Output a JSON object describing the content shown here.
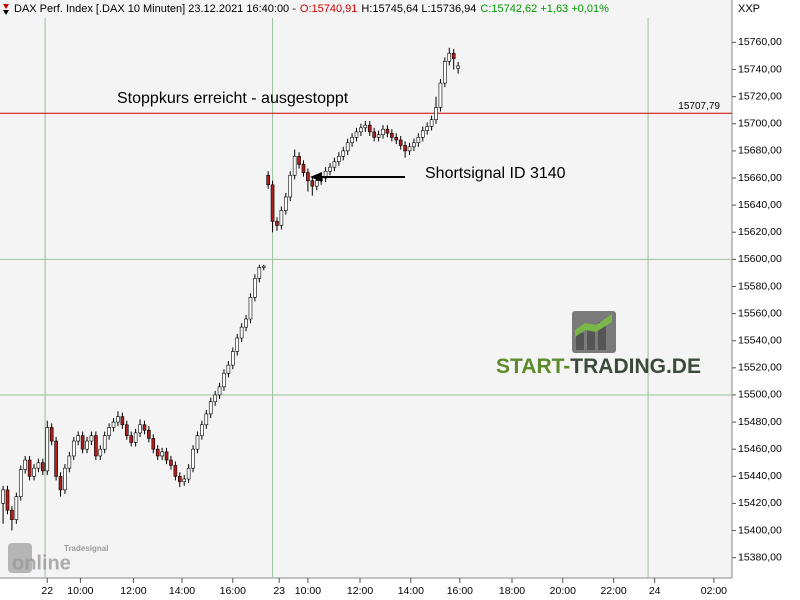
{
  "chart_data": {
    "type": "candlestick",
    "header": [
      "DAX Perf. Index [.DAX  10 Minuten] 23.12.2021 16:40:00 -",
      "O:15740,91",
      "H:15745,64 L:15736,94",
      "C:15742,62 +1,63 +0,01%"
    ],
    "header_colors": [
      "#000000",
      "#cc0000",
      "#000000",
      "#009900"
    ],
    "axis_title": "XXP",
    "annotations": [
      {
        "text": "Stoppkurs erreicht - ausgestoppt",
        "color": "#1a1adb"
      },
      {
        "text": "Shortsignal ID 3140",
        "color": "#1a1adb"
      }
    ],
    "logo": [
      "START-",
      "TRADING.DE"
    ],
    "watermark": [
      "Tradesignal",
      "online"
    ],
    "stop_line": {
      "value": 15707.79,
      "label": "15707,79",
      "color": "#cc0000"
    },
    "up_color": "#ffffff",
    "down_color": "#b01e1e",
    "wick_color": "#000000",
    "grid": true,
    "hgrid": [
      15500,
      15600
    ],
    "day_lines": [
      9.5,
      61,
      146
    ],
    "xlim": [
      -0.7,
      165
    ],
    "ylim": [
      15365,
      15778
    ],
    "xticks": [
      {
        "value": 10,
        "label": "22"
      },
      {
        "value": 17.5,
        "label": "10:00"
      },
      {
        "value": 29.5,
        "label": "12:00"
      },
      {
        "value": 40.5,
        "label": "14:00"
      },
      {
        "value": 52,
        "label": "16:00"
      },
      {
        "value": 62.5,
        "label": "23"
      },
      {
        "value": 69,
        "label": "10:00"
      },
      {
        "value": 80.8,
        "label": "12:00"
      },
      {
        "value": 92.3,
        "label": "14:00"
      },
      {
        "value": 103.4,
        "label": "16:00"
      },
      {
        "value": 115.2,
        "label": "18:00"
      },
      {
        "value": 126.7,
        "label": "20:00"
      },
      {
        "value": 138.2,
        "label": "22:00"
      },
      {
        "value": 147.5,
        "label": "24"
      },
      {
        "value": 160.9,
        "label": "02:00"
      }
    ],
    "yticks": [
      {
        "value": 15380,
        "label": "15380,00"
      },
      {
        "value": 15400,
        "label": "15400,00"
      },
      {
        "value": 15420,
        "label": "15420,00"
      },
      {
        "value": 15440,
        "label": "15440,00"
      },
      {
        "value": 15460,
        "label": "15460,00"
      },
      {
        "value": 15480,
        "label": "15480,00"
      },
      {
        "value": 15500,
        "label": "15500,00"
      },
      {
        "value": 15520,
        "label": "15520,00"
      },
      {
        "value": 15540,
        "label": "15540,00"
      },
      {
        "value": 15560,
        "label": "15560,00"
      },
      {
        "value": 15580,
        "label": "15580,00"
      },
      {
        "value": 15600,
        "label": "15600,00"
      },
      {
        "value": 15620,
        "label": "15620,00"
      },
      {
        "value": 15640,
        "label": "15640,00"
      },
      {
        "value": 15660,
        "label": "15660,00"
      },
      {
        "value": 15680,
        "label": "15680,00"
      },
      {
        "value": 15700,
        "label": "15700,00"
      },
      {
        "value": 15720,
        "label": "15720,00"
      },
      {
        "value": 15740,
        "label": "15740,00"
      },
      {
        "value": 15760,
        "label": "15760,00"
      }
    ],
    "candles": [
      [
        15420,
        15433,
        15405,
        15430
      ],
      [
        15430,
        15433,
        15412,
        15415
      ],
      [
        15415,
        15418,
        15400,
        15408
      ],
      [
        15408,
        15428,
        15405,
        15425
      ],
      [
        15425,
        15448,
        15422,
        15445
      ],
      [
        15445,
        15455,
        15442,
        15452
      ],
      [
        15452,
        15455,
        15437,
        15440
      ],
      [
        15440,
        15449,
        15437,
        15446
      ],
      [
        15446,
        15453,
        15443,
        15450
      ],
      [
        15450,
        15453,
        15441,
        15444
      ],
      [
        15444,
        15481,
        15441,
        15476
      ],
      [
        15476,
        15479,
        15463,
        15466
      ],
      [
        15466,
        15469,
        15437,
        15440
      ],
      [
        15440,
        15443,
        15425,
        15430
      ],
      [
        15430,
        15449,
        15427,
        15446
      ],
      [
        15446,
        15458,
        15443,
        15455
      ],
      [
        15455,
        15469,
        15452,
        15466
      ],
      [
        15466,
        15473,
        15463,
        15470
      ],
      [
        15470,
        15473,
        15457,
        15460
      ],
      [
        15460,
        15469,
        15457,
        15466
      ],
      [
        15466,
        15473,
        15463,
        15470
      ],
      [
        15470,
        15473,
        15452,
        15455
      ],
      [
        15455,
        15463,
        15452,
        15460
      ],
      [
        15460,
        15473,
        15457,
        15470
      ],
      [
        15470,
        15479,
        15467,
        15476
      ],
      [
        15476,
        15483,
        15473,
        15480
      ],
      [
        15480,
        15488,
        15477,
        15484
      ],
      [
        15484,
        15487,
        15475,
        15478
      ],
      [
        15478,
        15481,
        15467,
        15470
      ],
      [
        15470,
        15473,
        15462,
        15465
      ],
      [
        15465,
        15475,
        15462,
        15472
      ],
      [
        15472,
        15482,
        15469,
        15478
      ],
      [
        15478,
        15481,
        15471,
        15474
      ],
      [
        15474,
        15477,
        15465,
        15468
      ],
      [
        15468,
        15471,
        15457,
        15460
      ],
      [
        15460,
        15463,
        15452,
        15455
      ],
      [
        15455,
        15461,
        15452,
        15458
      ],
      [
        15458,
        15461,
        15449,
        15452
      ],
      [
        15452,
        15455,
        15445,
        15448
      ],
      [
        15448,
        15451,
        15437,
        15440
      ],
      [
        15440,
        15443,
        15432,
        15436
      ],
      [
        15436,
        15441,
        15433,
        15438
      ],
      [
        15438,
        15449,
        15435,
        15446
      ],
      [
        15446,
        15463,
        15443,
        15460
      ],
      [
        15460,
        15473,
        15457,
        15470
      ],
      [
        15470,
        15481,
        15467,
        15478
      ],
      [
        15478,
        15489,
        15475,
        15486
      ],
      [
        15486,
        15498,
        15483,
        15495
      ],
      [
        15495,
        15503,
        15492,
        15500
      ],
      [
        15500,
        15509,
        15497,
        15506
      ],
      [
        15506,
        15519,
        15503,
        15516
      ],
      [
        15516,
        15525,
        15513,
        15522
      ],
      [
        15522,
        15535,
        15519,
        15532
      ],
      [
        15532,
        15545,
        15529,
        15542
      ],
      [
        15542,
        15553,
        15539,
        15550
      ],
      [
        15550,
        15559,
        15547,
        15556
      ],
      [
        15556,
        15575,
        15553,
        15572
      ],
      [
        15572,
        15589,
        15569,
        15586
      ],
      [
        15586,
        15596,
        15583,
        15594
      ],
      [
        15594,
        15596,
        15592,
        15595
      ],
      [
        15662,
        15665,
        15652,
        15655
      ],
      [
        15655,
        15658,
        15620,
        15628
      ],
      [
        15628,
        15631,
        15621,
        15625
      ],
      [
        15625,
        15639,
        15622,
        15636
      ],
      [
        15636,
        15649,
        15633,
        15646
      ],
      [
        15646,
        15665,
        15643,
        15662
      ],
      [
        15662,
        15681,
        15659,
        15676
      ],
      [
        15676,
        15679,
        15667,
        15670
      ],
      [
        15670,
        15673,
        15661,
        15664
      ],
      [
        15664,
        15667,
        15650,
        15658
      ],
      [
        15658,
        15661,
        15647,
        15654
      ],
      [
        15654,
        15661,
        15651,
        15658
      ],
      [
        15658,
        15663,
        15655,
        15660
      ],
      [
        15660,
        15668,
        15657,
        15665
      ],
      [
        15665,
        15671,
        15662,
        15668
      ],
      [
        15668,
        15675,
        15665,
        15672
      ],
      [
        15672,
        15679,
        15669,
        15676
      ],
      [
        15676,
        15683,
        15673,
        15680
      ],
      [
        15680,
        15689,
        15677,
        15686
      ],
      [
        15686,
        15693,
        15683,
        15690
      ],
      [
        15690,
        15697,
        15687,
        15694
      ],
      [
        15694,
        15700,
        15691,
        15697
      ],
      [
        15697,
        15702,
        15694,
        15699
      ],
      [
        15699,
        15702,
        15691,
        15694
      ],
      [
        15694,
        15697,
        15687,
        15690
      ],
      [
        15690,
        15695,
        15687,
        15692
      ],
      [
        15692,
        15699,
        15689,
        15696
      ],
      [
        15696,
        15699,
        15690,
        15693
      ],
      [
        15693,
        15696,
        15687,
        15690
      ],
      [
        15690,
        15693,
        15685,
        15688
      ],
      [
        15688,
        15691,
        15681,
        15684
      ],
      [
        15684,
        15687,
        15675,
        15680
      ],
      [
        15680,
        15686,
        15677,
        15683
      ],
      [
        15683,
        15689,
        15680,
        15686
      ],
      [
        15686,
        15693,
        15683,
        15690
      ],
      [
        15690,
        15698,
        15687,
        15695
      ],
      [
        15695,
        15701,
        15692,
        15698
      ],
      [
        15698,
        15706,
        15695,
        15703
      ],
      [
        15703,
        15720,
        15700,
        15712
      ],
      [
        15712,
        15733,
        15709,
        15730
      ],
      [
        15730,
        15749,
        15727,
        15746
      ],
      [
        15746,
        15756,
        15743,
        15752
      ],
      [
        15752,
        15755,
        15740,
        15748
      ],
      [
        15740.91,
        15745.64,
        15736.94,
        15742.62
      ]
    ]
  }
}
